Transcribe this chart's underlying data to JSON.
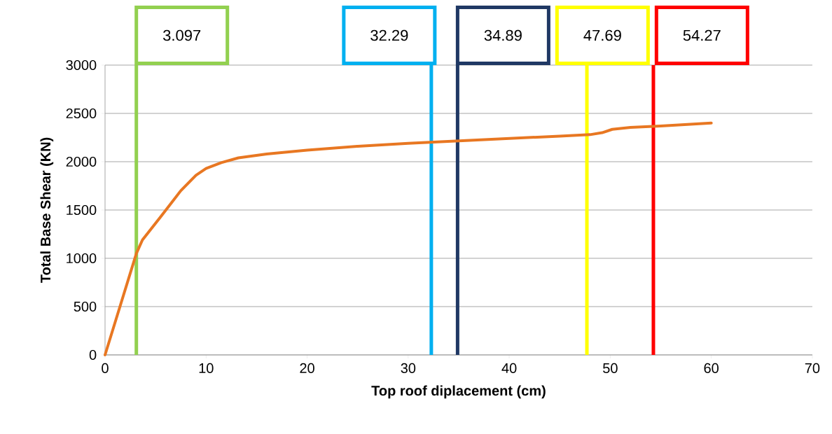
{
  "chart_data": {
    "type": "line",
    "xlabel": "Top roof diplacement (cm)",
    "ylabel": "Total Base Shear (KN)",
    "x": [
      0,
      3.097,
      3.7,
      5.5,
      7.5,
      9,
      10,
      11.5,
      13.2,
      16,
      20,
      25,
      30,
      35,
      40,
      45,
      48,
      49.2,
      50.2,
      52,
      55,
      60
    ],
    "series": [
      {
        "color": "#e87722",
        "values": [
          0,
          1050,
          1190,
          1430,
          1700,
          1860,
          1930,
          1990,
          2040,
          2080,
          2120,
          2160,
          2190,
          2215,
          2240,
          2265,
          2280,
          2300,
          2335,
          2355,
          2370,
          2400
        ]
      }
    ],
    "xlim": [
      0,
      70
    ],
    "ylim": [
      0,
      3000
    ],
    "xticks": [
      0,
      10,
      20,
      30,
      40,
      50,
      60,
      70
    ],
    "yticks": [
      0,
      500,
      1000,
      1500,
      2000,
      2500,
      3000
    ],
    "grid": "y",
    "line_style": "solid",
    "ref_lines": [
      {
        "axis": "x",
        "value": 3.097,
        "label": "3.097",
        "color": "#92d050"
      },
      {
        "axis": "x",
        "value": 32.29,
        "label": "32.29",
        "color": "#00b0f0"
      },
      {
        "axis": "x",
        "value": 34.89,
        "label": "34.89",
        "color": "#1f3864"
      },
      {
        "axis": "x",
        "value": 47.69,
        "label": "47.69",
        "color": "#ffff00"
      },
      {
        "axis": "x",
        "value": 54.27,
        "label": "54.27",
        "color": "#ff0000"
      }
    ]
  }
}
